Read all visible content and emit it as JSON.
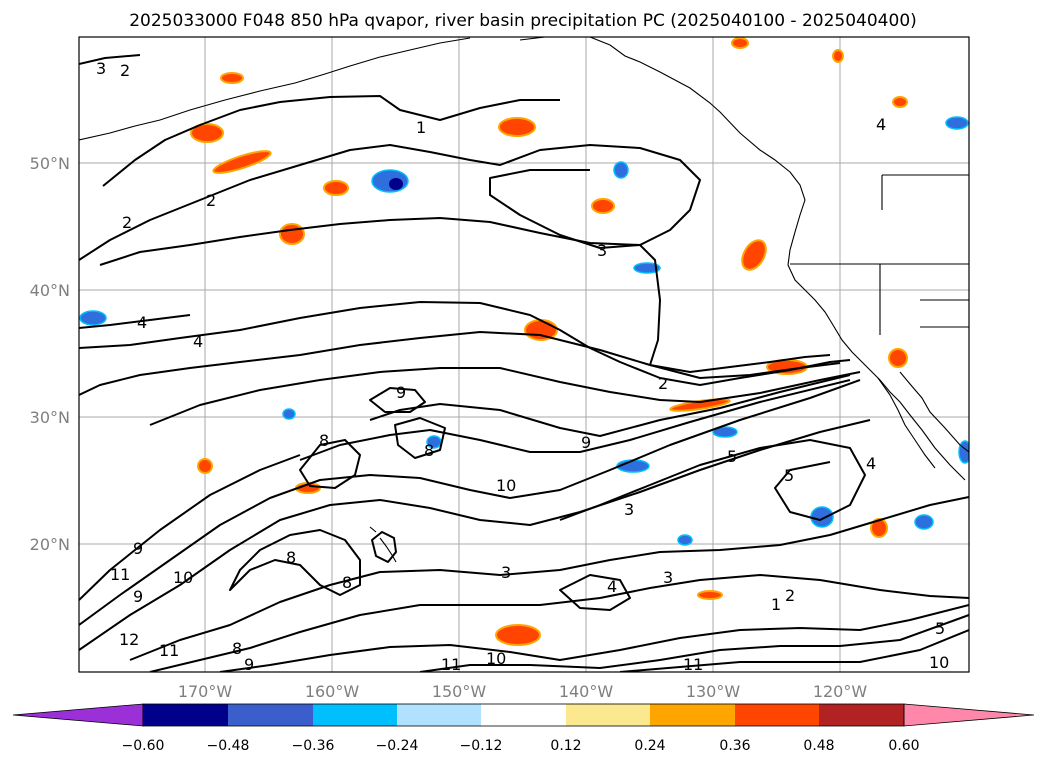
{
  "title": "2025033000 F048 850 hPa qvapor, river basin precipitation PC (2025040100 - 2025040400)",
  "map": {
    "lat_labels": [
      "50°N",
      "40°N",
      "30°N",
      "20°N"
    ],
    "lon_labels": [
      "170°W",
      "160°W",
      "150°W",
      "140°W",
      "130°W",
      "120°W"
    ],
    "contour_labels": [
      {
        "text": "3"
      },
      {
        "text": "2"
      },
      {
        "text": "1"
      },
      {
        "text": "2"
      },
      {
        "text": "2"
      },
      {
        "text": "3"
      },
      {
        "text": "4"
      },
      {
        "text": "4"
      },
      {
        "text": "4"
      },
      {
        "text": "2"
      },
      {
        "text": "9"
      },
      {
        "text": "9"
      },
      {
        "text": "8"
      },
      {
        "text": "8"
      },
      {
        "text": "5"
      },
      {
        "text": "5"
      },
      {
        "text": "4"
      },
      {
        "text": "3"
      },
      {
        "text": "3"
      },
      {
        "text": "3"
      },
      {
        "text": "4"
      },
      {
        "text": "2"
      },
      {
        "text": "1"
      },
      {
        "text": "9"
      },
      {
        "text": "11"
      },
      {
        "text": "10"
      },
      {
        "text": "9"
      },
      {
        "text": "12"
      },
      {
        "text": "11"
      },
      {
        "text": "8"
      },
      {
        "text": "9"
      },
      {
        "text": "8"
      },
      {
        "text": "8"
      },
      {
        "text": "10"
      },
      {
        "text": "11"
      },
      {
        "text": "10"
      },
      {
        "text": "11"
      },
      {
        "text": "5"
      },
      {
        "text": "10"
      }
    ]
  },
  "colorbar": {
    "ticks": [
      "−0.60",
      "−0.48",
      "−0.36",
      "−0.24",
      "−0.12",
      "0.12",
      "0.24",
      "0.36",
      "0.48",
      "0.60"
    ],
    "colors": [
      "#9b30d9",
      "#00008b",
      "#3a5fcd",
      "#00bfff",
      "#b0e2ff",
      "#ffffff",
      "#fce98f",
      "#ffa500",
      "#ff4500",
      "#b22222",
      "#ff88aa"
    ]
  },
  "legend_colors": {
    "negative_strong": "#00008b",
    "negative": "#2f6fdd",
    "positive": "#ff4500",
    "positive_edge": "#ffa500"
  }
}
